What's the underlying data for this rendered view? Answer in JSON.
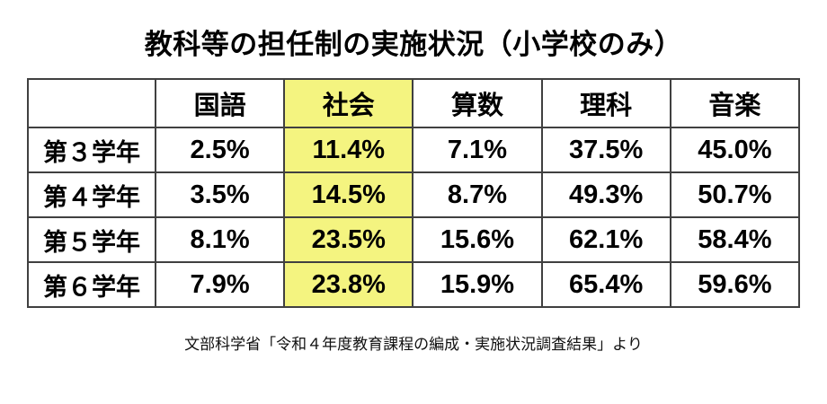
{
  "title": "教科等の担任制の実施状況（小学校のみ）",
  "source": "文部科学省「令和４年度教育課程の編成・実施状況調査結果」より",
  "colors": {
    "highlight": "#f4f480",
    "border": "#404040",
    "text": "#000000",
    "background": "#ffffff"
  },
  "table": {
    "columns": [
      "",
      "国語",
      "社会",
      "算数",
      "理科",
      "音楽"
    ],
    "highlighted_column": "社会",
    "rows": [
      {
        "label": "第３学年",
        "values": [
          "2.5%",
          "11.4%",
          "7.1%",
          "37.5%",
          "45.0%"
        ]
      },
      {
        "label": "第４学年",
        "values": [
          "3.5%",
          "14.5%",
          "8.7%",
          "49.3%",
          "50.7%"
        ]
      },
      {
        "label": "第５学年",
        "values": [
          "8.1%",
          "23.5%",
          "15.6%",
          "62.1%",
          "58.4%"
        ]
      },
      {
        "label": "第６学年",
        "values": [
          "7.9%",
          "23.8%",
          "15.9%",
          "65.4%",
          "59.6%"
        ]
      }
    ]
  },
  "chart_data": {
    "type": "table",
    "title": "教科等の担任制の実施状況（小学校のみ）",
    "unit": "%",
    "categories": [
      "第３学年",
      "第４学年",
      "第５学年",
      "第６学年"
    ],
    "series": [
      {
        "name": "国語",
        "values": [
          2.5,
          3.5,
          8.1,
          7.9
        ]
      },
      {
        "name": "社会",
        "values": [
          11.4,
          14.5,
          23.5,
          23.8
        ],
        "highlighted": true
      },
      {
        "name": "算数",
        "values": [
          7.1,
          8.7,
          15.6,
          15.9
        ]
      },
      {
        "name": "理科",
        "values": [
          37.5,
          49.3,
          62.1,
          65.4
        ]
      },
      {
        "name": "音楽",
        "values": [
          45.0,
          50.7,
          58.4,
          59.6
        ]
      }
    ],
    "source": "文部科学省「令和４年度教育課程の編成・実施状況調査結果」より"
  }
}
